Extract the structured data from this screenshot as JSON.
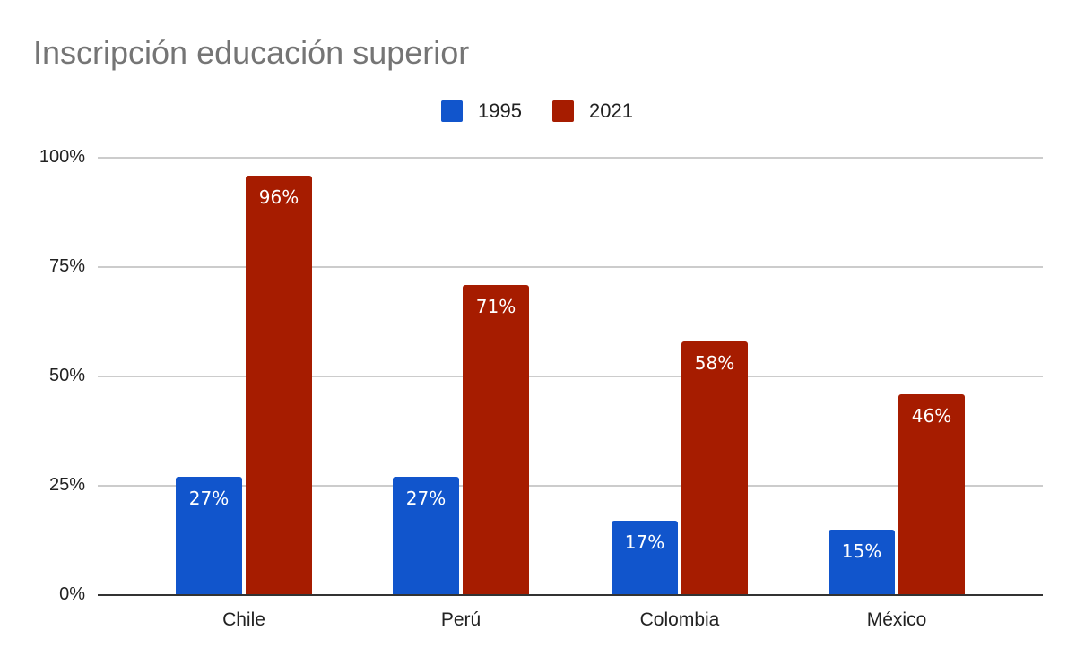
{
  "chart_data": {
    "type": "bar",
    "title": "Inscripción educación superior",
    "categories": [
      "Chile",
      "Perú",
      "Colombia",
      "México"
    ],
    "series": [
      {
        "name": "1995",
        "color": "#1155cc",
        "values": [
          27,
          27,
          17,
          15
        ],
        "labels": [
          "27%",
          "27%",
          "17%",
          "15%"
        ]
      },
      {
        "name": "2021",
        "color": "#a61c00",
        "values": [
          96,
          71,
          58,
          46
        ],
        "labels": [
          "96%",
          "71%",
          "58%",
          "46%"
        ]
      }
    ],
    "xlabel": "",
    "ylabel": "",
    "ylim": [
      0,
      100
    ],
    "yticks": [
      "0%",
      "25%",
      "50%",
      "75%",
      "100%"
    ],
    "grid": true,
    "legend_position": "top"
  },
  "title": "Inscripción educación superior",
  "legend": [
    {
      "label": "1995",
      "color": "#1155cc"
    },
    {
      "label": "2021",
      "color": "#a61c00"
    }
  ],
  "yaxis": {
    "ticks": [
      "100%",
      "75%",
      "50%",
      "25%",
      "0%"
    ]
  },
  "xaxis": {
    "labels": [
      "Chile",
      "Perú",
      "Colombia",
      "México"
    ]
  }
}
